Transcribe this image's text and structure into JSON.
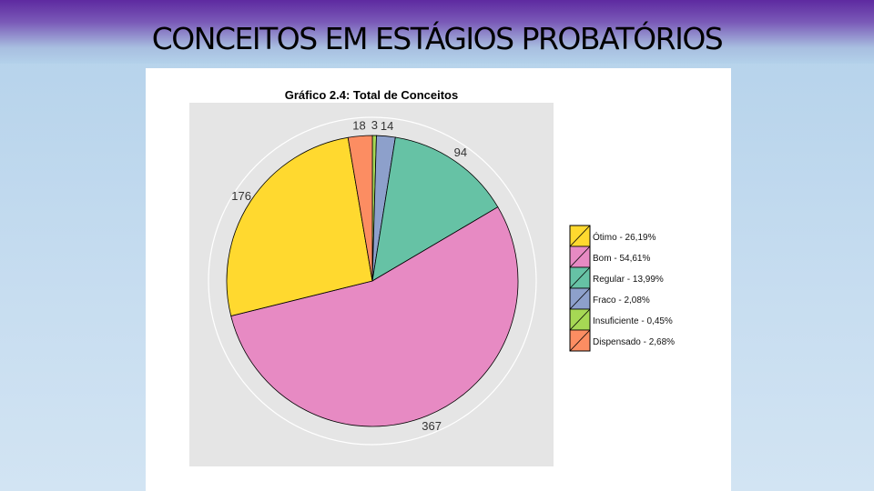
{
  "slide": {
    "title": "CONCEITOS EM ESTÁGIOS PROBATÓRIOS"
  },
  "chart_data": {
    "type": "pie",
    "title": "Gráfico 2.4: Total de Conceitos",
    "slices": [
      {
        "name": "Ótimo",
        "value": 176,
        "percent_label": "Ótimo - 26,19%",
        "color": "#FFD92F"
      },
      {
        "name": "Bom",
        "value": 367,
        "percent_label": "Bom - 54,61%",
        "color": "#E78AC3"
      },
      {
        "name": "Regular",
        "value": 94,
        "percent_label": "Regular - 13,99%",
        "color": "#66C2A5"
      },
      {
        "name": "Fraco",
        "value": 14,
        "percent_label": "Fraco - 2,08%",
        "color": "#8DA0CB"
      },
      {
        "name": "Insuficiente",
        "value": 3,
        "percent_label": "Insuficiente - 0,45%",
        "color": "#A6D854"
      },
      {
        "name": "Dispensado",
        "value": 18,
        "percent_label": "Dispensado - 2,68%",
        "color": "#FC8D62"
      }
    ],
    "draw_order": [
      "Insuficiente",
      "Fraco",
      "Regular",
      "Bom",
      "Ótimo",
      "Dispensado"
    ],
    "legend_position": "right",
    "plot_background": "#E5E5E5"
  }
}
